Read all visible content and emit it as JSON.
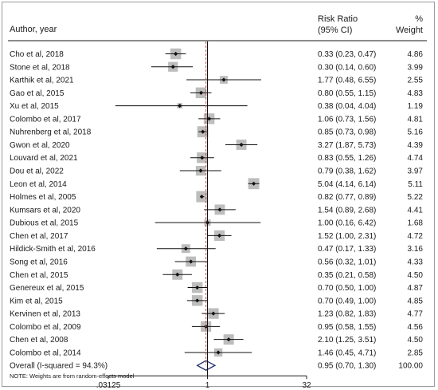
{
  "header": {
    "study_col": "Author, year",
    "effect_col_line1": "Risk Ratio",
    "effect_col_line2": "(95% CI)",
    "weight_col_line1": "%",
    "weight_col_line2": "Weight"
  },
  "note": "NOTE: Weights are from random-effects model",
  "colors": {
    "box": "#bdbdbd",
    "marker": "#111111",
    "line": "#111111",
    "null_line": "#111111",
    "overall_ref_line": "#c0504d",
    "diamond": "#1f2f6b"
  },
  "chart_data": {
    "type": "forest",
    "x_scale": "log2",
    "xlim": [
      0.03125,
      32
    ],
    "x_ticks": [
      0.03125,
      1,
      32
    ],
    "x_tick_labels": [
      ".03125",
      "1",
      "32"
    ],
    "null_value": 1,
    "studies": [
      {
        "label": "Cho et al, 2018",
        "rr": 0.33,
        "lo": 0.23,
        "hi": 0.47,
        "ci_text": "0.33 (0.23, 0.47)",
        "weight": 4.86,
        "weight_text": "4.86"
      },
      {
        "label": "Stone et al, 2018",
        "rr": 0.3,
        "lo": 0.14,
        "hi": 0.6,
        "ci_text": "0.30 (0.14, 0.60)",
        "weight": 3.99,
        "weight_text": "3.99"
      },
      {
        "label": "Karthik et al, 2021",
        "rr": 1.77,
        "lo": 0.48,
        "hi": 6.55,
        "ci_text": "1.77 (0.48, 6.55)",
        "weight": 2.55,
        "weight_text": "2.55"
      },
      {
        "label": "Gao et al, 2015",
        "rr": 0.8,
        "lo": 0.55,
        "hi": 1.15,
        "ci_text": "0.80 (0.55, 1.15)",
        "weight": 4.83,
        "weight_text": "4.83"
      },
      {
        "label": "Xu et al, 2015",
        "rr": 0.38,
        "lo": 0.04,
        "hi": 4.04,
        "ci_text": "0.38 (0.04, 4.04)",
        "weight": 1.19,
        "weight_text": "1.19"
      },
      {
        "label": "Colombo et al, 2017",
        "rr": 1.06,
        "lo": 0.73,
        "hi": 1.56,
        "ci_text": "1.06 (0.73, 1.56)",
        "weight": 4.81,
        "weight_text": "4.81"
      },
      {
        "label": "Nuhrenberg et al, 2018",
        "rr": 0.85,
        "lo": 0.73,
        "hi": 0.98,
        "ci_text": "0.85 (0.73, 0.98)",
        "weight": 5.16,
        "weight_text": "5.16"
      },
      {
        "label": "Gwon et al, 2020",
        "rr": 3.27,
        "lo": 1.87,
        "hi": 5.73,
        "ci_text": "3.27 (1.87, 5.73)",
        "weight": 4.39,
        "weight_text": "4.39"
      },
      {
        "label": "Louvard et al, 2021",
        "rr": 0.83,
        "lo": 0.55,
        "hi": 1.26,
        "ci_text": "0.83 (0.55, 1.26)",
        "weight": 4.74,
        "weight_text": "4.74"
      },
      {
        "label": "Dou et al, 2022",
        "rr": 0.79,
        "lo": 0.38,
        "hi": 1.62,
        "ci_text": "0.79 (0.38, 1.62)",
        "weight": 3.97,
        "weight_text": "3.97"
      },
      {
        "label": "Leon et al, 2014",
        "rr": 5.04,
        "lo": 4.14,
        "hi": 6.14,
        "ci_text": "5.04 (4.14, 6.14)",
        "weight": 5.11,
        "weight_text": "5.11"
      },
      {
        "label": "Holmes et al, 2005",
        "rr": 0.82,
        "lo": 0.77,
        "hi": 0.89,
        "ci_text": "0.82 (0.77, 0.89)",
        "weight": 5.22,
        "weight_text": "5.22"
      },
      {
        "label": "Kumsars et al, 2020",
        "rr": 1.54,
        "lo": 0.89,
        "hi": 2.68,
        "ci_text": "1.54 (0.89, 2.68)",
        "weight": 4.41,
        "weight_text": "4.41"
      },
      {
        "label": "Dubious et al, 2015",
        "rr": 1.0,
        "lo": 0.16,
        "hi": 6.42,
        "ci_text": "1.00 (0.16, 6.42)",
        "weight": 1.68,
        "weight_text": "1.68"
      },
      {
        "label": "Chen et al, 2017",
        "rr": 1.52,
        "lo": 1.0,
        "hi": 2.31,
        "ci_text": "1.52 (1.00, 2.31)",
        "weight": 4.72,
        "weight_text": "4.72"
      },
      {
        "label": "Hildick-Smith et al, 2016",
        "rr": 0.47,
        "lo": 0.17,
        "hi": 1.33,
        "ci_text": "0.47 (0.17, 1.33)",
        "weight": 3.16,
        "weight_text": "3.16"
      },
      {
        "label": "Song et al, 2016",
        "rr": 0.56,
        "lo": 0.32,
        "hi": 1.01,
        "ci_text": "0.56 (0.32, 1.01)",
        "weight": 4.33,
        "weight_text": "4.33"
      },
      {
        "label": "Chen et al, 2015",
        "rr": 0.35,
        "lo": 0.21,
        "hi": 0.58,
        "ci_text": "0.35 (0.21, 0.58)",
        "weight": 4.5,
        "weight_text": "4.50"
      },
      {
        "label": "Genereux et al, 2015",
        "rr": 0.7,
        "lo": 0.5,
        "hi": 1.0,
        "ci_text": "0.70 (0.50, 1.00)",
        "weight": 4.87,
        "weight_text": "4.87"
      },
      {
        "label": "Kim et al, 2015",
        "rr": 0.7,
        "lo": 0.49,
        "hi": 1.0,
        "ci_text": "0.70 (0.49, 1.00)",
        "weight": 4.85,
        "weight_text": "4.85"
      },
      {
        "label": "Kervinen et  al, 2013",
        "rr": 1.23,
        "lo": 0.82,
        "hi": 1.83,
        "ci_text": "1.23 (0.82, 1.83)",
        "weight": 4.77,
        "weight_text": "4.77"
      },
      {
        "label": "Colombo et al, 2009",
        "rr": 0.95,
        "lo": 0.58,
        "hi": 1.55,
        "ci_text": "0.95 (0.58, 1.55)",
        "weight": 4.56,
        "weight_text": "4.56"
      },
      {
        "label": "Chen et al, 2008",
        "rr": 2.1,
        "lo": 1.25,
        "hi": 3.51,
        "ci_text": "2.10 (1.25, 3.51)",
        "weight": 4.5,
        "weight_text": "4.50"
      },
      {
        "label": "Colombo et al, 2014",
        "rr": 1.46,
        "lo": 0.45,
        "hi": 4.71,
        "ci_text": "1.46 (0.45, 4.71)",
        "weight": 2.85,
        "weight_text": "2.85"
      }
    ],
    "overall": {
      "label": "Overall  (I-squared = 94.3%)",
      "rr": 0.95,
      "lo": 0.7,
      "hi": 1.3,
      "ci_text": "0.95 (0.70, 1.30)",
      "weight_text": "100.00"
    }
  }
}
